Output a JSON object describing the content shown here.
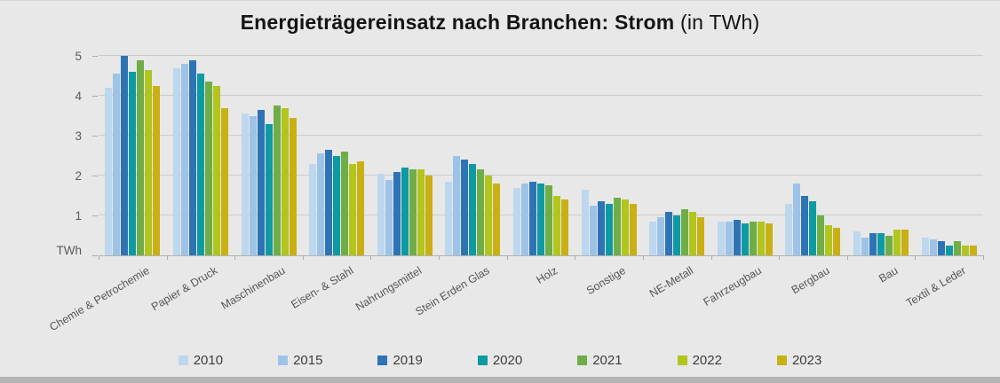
{
  "title": {
    "bold": "Energieträgereinsatz nach Branchen: Strom",
    "normal": " (in TWh)"
  },
  "chart_data": {
    "type": "bar",
    "title": "Energieträgereinsatz nach Branchen: Strom (in TWh)",
    "xlabel": "",
    "ylabel": "TWh",
    "ylim": [
      0,
      5
    ],
    "yticks": [
      1,
      2,
      3,
      4,
      5
    ],
    "grid": true,
    "legend_position": "bottom",
    "categories": [
      "Chemie & Petrochemie",
      "Papier & Druck",
      "Maschinenbau",
      "Eisen- & Stahl",
      "Nahrungsmittel",
      "Stein Erden Glas",
      "Holz",
      "Sonstige",
      "NE-Metall",
      "Fahrzeugbau",
      "Bergbau",
      "Bau",
      "Textil & Leder"
    ],
    "series": [
      {
        "name": "2010",
        "color": "#bdd7ee",
        "values": [
          4.2,
          4.7,
          3.55,
          2.3,
          2.05,
          1.85,
          1.7,
          1.65,
          0.85,
          0.85,
          1.3,
          0.6,
          0.45
        ]
      },
      {
        "name": "2015",
        "color": "#9dc3e6",
        "values": [
          4.55,
          4.8,
          3.5,
          2.55,
          1.9,
          2.5,
          1.8,
          1.25,
          0.95,
          0.85,
          1.8,
          0.45,
          0.4
        ]
      },
      {
        "name": "2019",
        "color": "#2e74b5",
        "values": [
          5.0,
          4.9,
          3.65,
          2.65,
          2.1,
          2.4,
          1.85,
          1.35,
          1.1,
          0.9,
          1.5,
          0.55,
          0.35
        ]
      },
      {
        "name": "2020",
        "color": "#0d9aa3",
        "values": [
          4.6,
          4.55,
          3.3,
          2.5,
          2.2,
          2.3,
          1.8,
          1.3,
          1.0,
          0.8,
          1.35,
          0.55,
          0.25
        ]
      },
      {
        "name": "2021",
        "color": "#6fad47",
        "values": [
          4.9,
          4.35,
          3.75,
          2.6,
          2.15,
          2.15,
          1.75,
          1.45,
          1.15,
          0.85,
          1.0,
          0.5,
          0.35
        ]
      },
      {
        "name": "2022",
        "color": "#b2c51c",
        "values": [
          4.65,
          4.25,
          3.7,
          2.3,
          2.15,
          2.0,
          1.5,
          1.4,
          1.1,
          0.85,
          0.75,
          0.65,
          0.25
        ]
      },
      {
        "name": "2023",
        "color": "#c9b013",
        "values": [
          4.25,
          3.7,
          3.45,
          2.35,
          2.0,
          1.8,
          1.4,
          1.3,
          0.95,
          0.8,
          0.7,
          0.65,
          0.25
        ]
      }
    ]
  }
}
